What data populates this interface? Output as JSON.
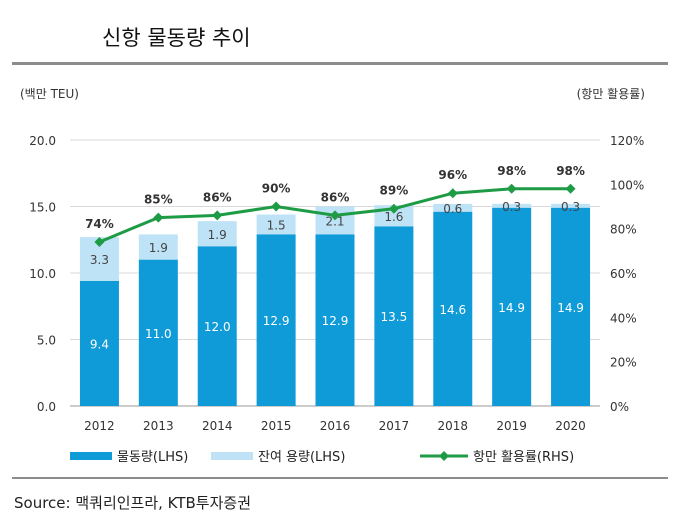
{
  "title": "신항 물동량 추이",
  "source": "Source: 맥쿼리인프라, KTB투자증권",
  "colors": {
    "volume": "#0f9ad8",
    "remaining": "#bfe3f6",
    "utilization": "#1e9b45",
    "grid": "#d9d9d9"
  },
  "chart_data": {
    "type": "bar",
    "stacked": true,
    "categories": [
      "2012",
      "2013",
      "2014",
      "2015",
      "2016",
      "2017",
      "2018",
      "2019",
      "2020"
    ],
    "series": [
      {
        "name": "물동량(LHS)",
        "values": [
          9.4,
          11.0,
          12.0,
          12.9,
          12.9,
          13.5,
          14.6,
          14.9,
          14.9
        ],
        "labels": [
          "9.4",
          "11.0",
          "12.0",
          "12.9",
          "12.9",
          "13.5",
          "14.6",
          "14.9",
          "14.9"
        ]
      },
      {
        "name": "잔여 용량(LHS)",
        "values": [
          3.3,
          1.9,
          1.9,
          1.5,
          2.1,
          1.6,
          0.6,
          0.3,
          0.3
        ],
        "labels": [
          "3.3",
          "1.9",
          "1.9",
          "1.5",
          "2.1",
          "1.6",
          "0.6",
          "0.3",
          "0.3"
        ]
      },
      {
        "name": "항만 활용률(RHS)",
        "type": "line",
        "axis": "right",
        "values": [
          74,
          85,
          86,
          90,
          86,
          89,
          96,
          98,
          98
        ],
        "labels": [
          "74%",
          "85%",
          "86%",
          "90%",
          "86%",
          "89%",
          "96%",
          "98%",
          "98%"
        ]
      }
    ],
    "left_axis": {
      "label": "(백만 TEU)",
      "range": [
        0,
        20
      ],
      "ticks": [
        "0.0",
        "5.0",
        "10.0",
        "15.0",
        "20.0"
      ]
    },
    "right_axis": {
      "label": "(항만 활용률)",
      "range": [
        0,
        120
      ],
      "ticks": [
        "0%",
        "20%",
        "40%",
        "60%",
        "80%",
        "100%",
        "120%"
      ]
    },
    "grid": true,
    "legend_position": "bottom"
  }
}
